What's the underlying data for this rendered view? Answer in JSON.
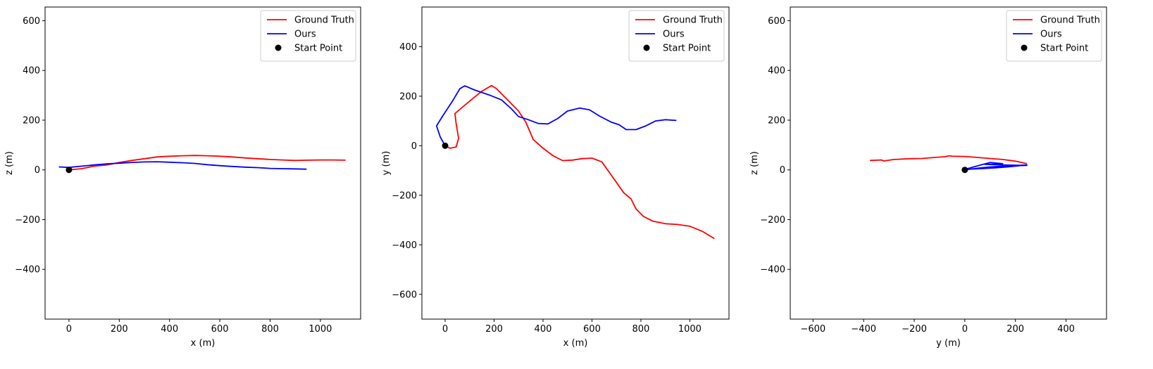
{
  "chart_data": [
    {
      "type": "line",
      "xlabel": "x (m)",
      "ylabel": "z (m)",
      "xlim": [
        -95,
        1160
      ],
      "ylim": [
        -600,
        655
      ],
      "xticks": [
        0,
        200,
        400,
        600,
        800,
        1000
      ],
      "yticks": [
        -400,
        -200,
        0,
        200,
        400,
        600
      ],
      "legend_position": "top-right",
      "series": [
        {
          "name": "Ground Truth",
          "color": "#ff0000",
          "points": [
            [
              0,
              0
            ],
            [
              50,
              5
            ],
            [
              100,
              15
            ],
            [
              150,
              20
            ],
            [
              200,
              30
            ],
            [
              250,
              38
            ],
            [
              300,
              45
            ],
            [
              350,
              52
            ],
            [
              400,
              55
            ],
            [
              450,
              57
            ],
            [
              500,
              58
            ],
            [
              550,
              57
            ],
            [
              600,
              55
            ],
            [
              650,
              52
            ],
            [
              700,
              48
            ],
            [
              750,
              45
            ],
            [
              800,
              42
            ],
            [
              850,
              40
            ],
            [
              900,
              38
            ],
            [
              950,
              39
            ],
            [
              1000,
              40
            ],
            [
              1050,
              40
            ],
            [
              1100,
              39
            ]
          ]
        },
        {
          "name": "Ours",
          "color": "#0000ff",
          "points": [
            [
              -40,
              12
            ],
            [
              0,
              10
            ],
            [
              50,
              15
            ],
            [
              100,
              20
            ],
            [
              150,
              24
            ],
            [
              200,
              27
            ],
            [
              250,
              30
            ],
            [
              300,
              32
            ],
            [
              350,
              33
            ],
            [
              400,
              31
            ],
            [
              450,
              29
            ],
            [
              500,
              26
            ],
            [
              550,
              21
            ],
            [
              600,
              17
            ],
            [
              650,
              14
            ],
            [
              700,
              11
            ],
            [
              750,
              9
            ],
            [
              800,
              6
            ],
            [
              850,
              5
            ],
            [
              900,
              4
            ],
            [
              945,
              3
            ]
          ]
        },
        {
          "name": "Start Point",
          "color": "#000000",
          "marker": "circle",
          "points": [
            [
              0,
              0
            ]
          ]
        }
      ]
    },
    {
      "type": "line",
      "xlabel": "x (m)",
      "ylabel": "y (m)",
      "xlim": [
        -95,
        1160
      ],
      "ylim": [
        -700,
        560
      ],
      "xticks": [
        0,
        200,
        400,
        600,
        800,
        1000
      ],
      "yticks": [
        -600,
        -400,
        -200,
        0,
        200,
        400
      ],
      "legend_position": "top-right",
      "series": [
        {
          "name": "Ground Truth",
          "color": "#ff0000",
          "points": [
            [
              0,
              0
            ],
            [
              20,
              -10
            ],
            [
              45,
              -5
            ],
            [
              55,
              30
            ],
            [
              45,
              90
            ],
            [
              40,
              130
            ],
            [
              100,
              180
            ],
            [
              150,
              220
            ],
            [
              190,
              243
            ],
            [
              210,
              230
            ],
            [
              250,
              190
            ],
            [
              300,
              140
            ],
            [
              330,
              95
            ],
            [
              360,
              25
            ],
            [
              400,
              -10
            ],
            [
              440,
              -40
            ],
            [
              480,
              -60
            ],
            [
              520,
              -58
            ],
            [
              560,
              -52
            ],
            [
              600,
              -50
            ],
            [
              640,
              -65
            ],
            [
              680,
              -120
            ],
            [
              730,
              -190
            ],
            [
              760,
              -215
            ],
            [
              780,
              -255
            ],
            [
              810,
              -285
            ],
            [
              850,
              -305
            ],
            [
              900,
              -315
            ],
            [
              950,
              -318
            ],
            [
              1000,
              -325
            ],
            [
              1050,
              -345
            ],
            [
              1100,
              -375
            ]
          ]
        },
        {
          "name": "Ours",
          "color": "#0000ff",
          "points": [
            [
              0,
              0
            ],
            [
              -20,
              35
            ],
            [
              -35,
              80
            ],
            [
              -10,
              120
            ],
            [
              30,
              180
            ],
            [
              60,
              230
            ],
            [
              80,
              242
            ],
            [
              120,
              225
            ],
            [
              180,
              205
            ],
            [
              230,
              185
            ],
            [
              270,
              150
            ],
            [
              300,
              118
            ],
            [
              340,
              105
            ],
            [
              380,
              90
            ],
            [
              420,
              88
            ],
            [
              460,
              110
            ],
            [
              500,
              140
            ],
            [
              550,
              152
            ],
            [
              590,
              145
            ],
            [
              630,
              120
            ],
            [
              680,
              95
            ],
            [
              710,
              85
            ],
            [
              740,
              65
            ],
            [
              780,
              65
            ],
            [
              820,
              80
            ],
            [
              860,
              100
            ],
            [
              900,
              105
            ],
            [
              945,
              102
            ]
          ]
        },
        {
          "name": "Start Point",
          "color": "#000000",
          "marker": "circle",
          "points": [
            [
              0,
              0
            ]
          ]
        }
      ]
    },
    {
      "type": "line",
      "xlabel": "y (m)",
      "ylabel": "z (m)",
      "xlim": [
        -690,
        560
      ],
      "ylim": [
        -600,
        655
      ],
      "xticks": [
        -600,
        -400,
        -200,
        0,
        200,
        400
      ],
      "yticks": [
        -400,
        -200,
        0,
        200,
        400,
        600
      ],
      "legend_position": "top-right",
      "series": [
        {
          "name": "Ground Truth",
          "color": "#ff0000",
          "points": [
            [
              -375,
              38
            ],
            [
              -330,
              40
            ],
            [
              -320,
              36
            ],
            [
              -280,
              42
            ],
            [
              -220,
              45
            ],
            [
              -170,
              46
            ],
            [
              -120,
              50
            ],
            [
              -80,
              53
            ],
            [
              -60,
              57
            ],
            [
              -50,
              55
            ],
            [
              0,
              54
            ],
            [
              50,
              50
            ],
            [
              100,
              46
            ],
            [
              150,
              42
            ],
            [
              200,
              35
            ],
            [
              245,
              25
            ]
          ]
        },
        {
          "name": "Ours",
          "color": "#0000ff",
          "points": [
            [
              0,
              0
            ],
            [
              60,
              8
            ],
            [
              100,
              12
            ],
            [
              150,
              15
            ],
            [
              200,
              17
            ],
            [
              245,
              18
            ],
            [
              150,
              20
            ],
            [
              80,
              22
            ],
            [
              150,
              25
            ],
            [
              100,
              30
            ],
            [
              0,
              2
            ],
            [
              245,
              20
            ],
            [
              170,
              12
            ],
            [
              120,
              8
            ],
            [
              60,
              5
            ],
            [
              0,
              2
            ]
          ]
        },
        {
          "name": "Start Point",
          "color": "#000000",
          "marker": "circle",
          "points": [
            [
              0,
              0
            ]
          ]
        }
      ]
    }
  ]
}
